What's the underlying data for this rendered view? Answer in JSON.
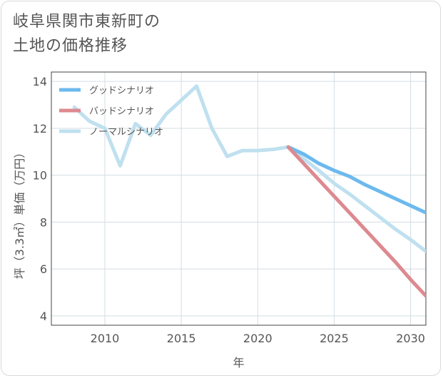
{
  "title_lines": [
    "岐阜県関市東新町の",
    "土地の価格推移"
  ],
  "chart_data": {
    "type": "line",
    "xlabel": "年",
    "ylabel": "坪（3.3㎡）単価（万円）",
    "xlim": [
      2006.5,
      2031
    ],
    "ylim": [
      3.6,
      14.4
    ],
    "xticks": [
      2010,
      2015,
      2020,
      2025,
      2030
    ],
    "yticks": [
      4,
      6,
      8,
      10,
      12,
      14
    ],
    "grid": true,
    "legend_position": "top-left",
    "series": [
      {
        "name": "グッドシナリオ",
        "color": "#6cb9ee",
        "x": [
          2022,
          2023,
          2024,
          2025,
          2026,
          2027,
          2028,
          2029,
          2030,
          2031
        ],
        "values": [
          11.2,
          10.9,
          10.5,
          10.2,
          9.95,
          9.6,
          9.3,
          9.0,
          8.7,
          8.4
        ]
      },
      {
        "name": "バッドシナリオ",
        "color": "#dd8990",
        "x": [
          2022,
          2023,
          2024,
          2025,
          2026,
          2027,
          2028,
          2029,
          2030,
          2031
        ],
        "values": [
          11.2,
          10.5,
          9.8,
          9.1,
          8.4,
          7.7,
          7.0,
          6.3,
          5.55,
          4.85
        ]
      },
      {
        "name": "ノーマルシナリオ",
        "color": "#bfe0ef",
        "x": [
          2008,
          2009,
          2010,
          2011,
          2012,
          2013,
          2014,
          2015,
          2016,
          2017,
          2018,
          2019,
          2020,
          2021,
          2022,
          2023,
          2024,
          2025,
          2026,
          2027,
          2028,
          2029,
          2030,
          2031
        ],
        "values": [
          12.9,
          12.3,
          12.0,
          10.4,
          12.2,
          11.7,
          12.6,
          13.2,
          13.8,
          12.0,
          10.8,
          11.05,
          11.05,
          11.1,
          11.2,
          10.7,
          10.2,
          9.65,
          9.2,
          8.7,
          8.2,
          7.7,
          7.25,
          6.75
        ]
      }
    ]
  }
}
